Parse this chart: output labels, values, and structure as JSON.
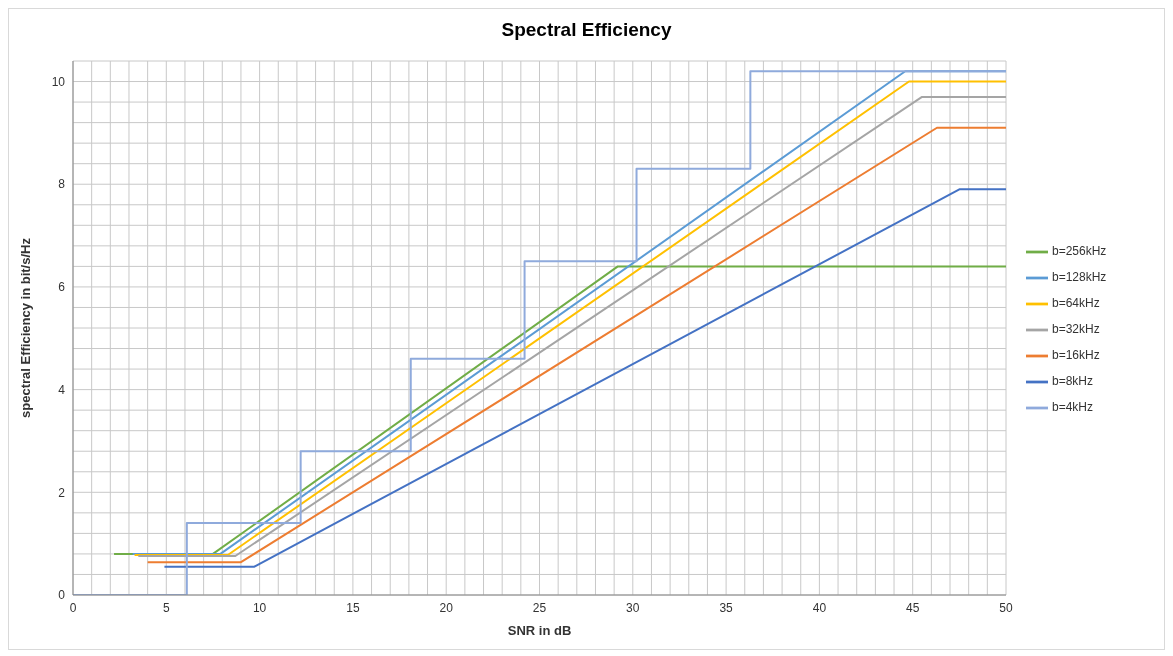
{
  "chart_data": {
    "type": "line",
    "title": "Spectral Efficiency",
    "xlabel": "SNR in dB",
    "ylabel": "spectral Efficiency in bit/s/Hz",
    "xlim": [
      0,
      50
    ],
    "ylim": [
      0,
      10.4
    ],
    "xticks": [
      0,
      {
        "value": 1,
        "label": null
      },
      {
        "value": 2,
        "label": null
      },
      {
        "value": 3,
        "label": null
      },
      {
        "value": 4,
        "label": null
      },
      5,
      {
        "value": 6,
        "label": null
      },
      {
        "value": 7,
        "label": null
      },
      {
        "value": 8,
        "label": null
      },
      {
        "value": 9,
        "label": null
      },
      10,
      {
        "value": 11,
        "label": null
      },
      {
        "value": 12,
        "label": null
      },
      {
        "value": 13,
        "label": null
      },
      {
        "value": 14,
        "label": null
      },
      15,
      {
        "value": 16,
        "label": null
      },
      {
        "value": 17,
        "label": null
      },
      {
        "value": 18,
        "label": null
      },
      {
        "value": 19,
        "label": null
      },
      20,
      {
        "value": 21,
        "label": null
      },
      {
        "value": 22,
        "label": null
      },
      {
        "value": 23,
        "label": null
      },
      {
        "value": 24,
        "label": null
      },
      25,
      {
        "value": 26,
        "label": null
      },
      {
        "value": 27,
        "label": null
      },
      {
        "value": 28,
        "label": null
      },
      {
        "value": 29,
        "label": null
      },
      30,
      {
        "value": 31,
        "label": null
      },
      {
        "value": 32,
        "label": null
      },
      {
        "value": 33,
        "label": null
      },
      {
        "value": 34,
        "label": null
      },
      35,
      {
        "value": 36,
        "label": null
      },
      {
        "value": 37,
        "label": null
      },
      {
        "value": 38,
        "label": null
      },
      {
        "value": 39,
        "label": null
      },
      40,
      {
        "value": 41,
        "label": null
      },
      {
        "value": 42,
        "label": null
      },
      {
        "value": 43,
        "label": null
      },
      {
        "value": 44,
        "label": null
      },
      45,
      {
        "value": 46,
        "label": null
      },
      {
        "value": 47,
        "label": null
      },
      {
        "value": 48,
        "label": null
      },
      {
        "value": 49,
        "label": null
      },
      50
    ],
    "yticks": [
      0,
      {
        "value": 0.4,
        "label": null
      },
      {
        "value": 0.8,
        "label": null
      },
      {
        "value": 1.2,
        "label": null
      },
      {
        "value": 1.6,
        "label": null
      },
      2,
      {
        "value": 2.4,
        "label": null
      },
      {
        "value": 2.8,
        "label": null
      },
      {
        "value": 3.2,
        "label": null
      },
      {
        "value": 3.6,
        "label": null
      },
      4,
      {
        "value": 4.4,
        "label": null
      },
      {
        "value": 4.8,
        "label": null
      },
      {
        "value": 5.2,
        "label": null
      },
      {
        "value": 5.6,
        "label": null
      },
      6,
      {
        "value": 6.4,
        "label": null
      },
      {
        "value": 6.8,
        "label": null
      },
      {
        "value": 7.2,
        "label": null
      },
      {
        "value": 7.6,
        "label": null
      },
      8,
      {
        "value": 8.4,
        "label": null
      },
      {
        "value": 8.8,
        "label": null
      },
      {
        "value": 9.2,
        "label": null
      },
      {
        "value": 9.6,
        "label": null
      },
      10,
      {
        "value": 10.4,
        "label": null
      }
    ],
    "grid": true,
    "legend": "right",
    "series": [
      {
        "name": "b=256kHz",
        "color": "#70ad47",
        "x": [
          2.2,
          7.5,
          29.2,
          50
        ],
        "values": [
          0.8,
          0.8,
          6.4,
          6.4
        ]
      },
      {
        "name": "b=128kHz",
        "color": "#5b9bd5",
        "x": [
          3.2,
          7.9,
          44.6,
          50
        ],
        "values": [
          0.8,
          0.8,
          10.2,
          10.2
        ]
      },
      {
        "name": "b=64kHz",
        "color": "#ffc000",
        "x": [
          3.3,
          8.3,
          44.8,
          50
        ],
        "values": [
          0.78,
          0.78,
          10.0,
          10.0
        ]
      },
      {
        "name": "b=32kHz",
        "color": "#a5a5a5",
        "x": [
          3.5,
          8.7,
          45.5,
          50
        ],
        "values": [
          0.76,
          0.76,
          9.7,
          9.7
        ]
      },
      {
        "name": "b=16kHz",
        "color": "#ed7d31",
        "x": [
          4.0,
          9.0,
          46.3,
          50
        ],
        "values": [
          0.64,
          0.64,
          9.1,
          9.1
        ]
      },
      {
        "name": "b=8kHz",
        "color": "#4472c4",
        "x": [
          4.9,
          9.7,
          47.5,
          50
        ],
        "values": [
          0.55,
          0.55,
          7.9,
          7.9
        ]
      },
      {
        "name": "b=4kHz",
        "color": "#8faadc",
        "type": "step",
        "x": [
          0,
          6.1,
          12.2,
          18.1,
          24.2,
          30.2,
          36.3,
          50
        ],
        "values": [
          0,
          1.4,
          2.8,
          4.6,
          6.5,
          8.3,
          10.2,
          10.2
        ]
      }
    ]
  }
}
